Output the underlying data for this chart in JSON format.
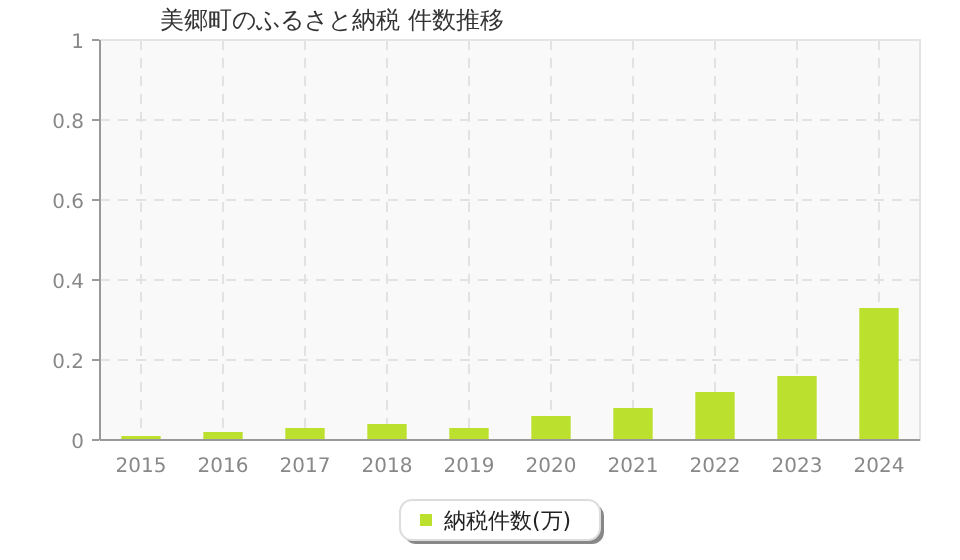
{
  "chart_data": {
    "type": "bar",
    "title": "美郷町のふるさと納税  件数推移",
    "categories": [
      "2015",
      "2016",
      "2017",
      "2018",
      "2019",
      "2020",
      "2021",
      "2022",
      "2023",
      "2024"
    ],
    "series": [
      {
        "name": "納税件数(万)",
        "color": "#bbe02e",
        "values": [
          0.01,
          0.02,
          0.03,
          0.04,
          0.03,
          0.06,
          0.08,
          0.12,
          0.16,
          0.33
        ]
      }
    ],
    "ylim": [
      0,
      1
    ],
    "yticks": [
      0,
      0.2,
      0.4,
      0.6,
      0.8,
      1
    ],
    "grid": true,
    "legend": "bottom"
  }
}
